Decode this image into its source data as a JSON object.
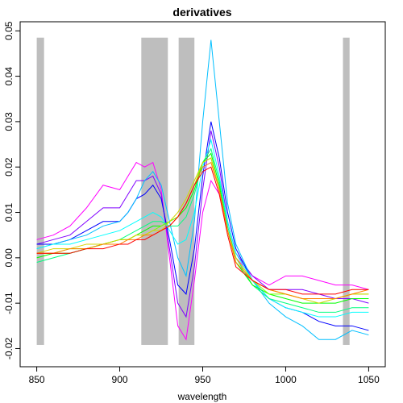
{
  "chart_data": {
    "type": "line",
    "title": "derivatives",
    "xlabel": "wavelength",
    "x": [
      850,
      860,
      870,
      880,
      890,
      900,
      905,
      910,
      915,
      920,
      925,
      930,
      935,
      940,
      945,
      950,
      955,
      960,
      965,
      970,
      980,
      990,
      1000,
      1010,
      1020,
      1030,
      1040,
      1050
    ],
    "xlim": [
      840,
      1060
    ],
    "ylim": [
      -0.024,
      0.052
    ],
    "xticks": [
      850,
      900,
      950,
      1000,
      1050
    ],
    "yticks": [
      -0.02,
      -0.01,
      {
        "value": 0,
        "label": "0.00"
      },
      0.01,
      0.02,
      0.03,
      0.04,
      0.05
    ],
    "shaded_regions": [
      {
        "x": [
          850,
          854.4
        ],
        "y": [
          -0.0192,
          0.0485
        ]
      },
      {
        "x": [
          913,
          929
        ],
        "y": [
          -0.0192,
          0.0485
        ]
      },
      {
        "x": [
          935.5,
          945
        ],
        "y": [
          -0.0192,
          0.0485
        ]
      },
      {
        "x": [
          1034.5,
          1038.5
        ],
        "y": [
          -0.0192,
          0.0485
        ]
      }
    ],
    "shade_color": "#bebebe",
    "series": [
      {
        "color": "#ff00ff",
        "values": [
          0.004,
          0.005,
          0.007,
          0.011,
          0.016,
          0.015,
          0.018,
          0.021,
          0.02,
          0.021,
          0.015,
          0.0,
          -0.015,
          -0.018,
          -0.005,
          0.01,
          0.017,
          0.014,
          0.006,
          0.0,
          -0.004,
          -0.006,
          -0.004,
          -0.004,
          -0.005,
          -0.006,
          -0.006,
          -0.007
        ]
      },
      {
        "color": "#8000ff",
        "values": [
          0.003,
          0.004,
          0.005,
          0.008,
          0.011,
          0.011,
          0.014,
          0.017,
          0.017,
          0.018,
          0.014,
          0.002,
          -0.01,
          -0.013,
          -0.002,
          0.015,
          0.028,
          0.02,
          0.008,
          0.001,
          -0.004,
          -0.007,
          -0.007,
          -0.007,
          -0.008,
          -0.009,
          -0.009,
          -0.01
        ]
      },
      {
        "color": "#0000ff",
        "values": [
          0.003,
          0.003,
          0.004,
          0.006,
          0.008,
          0.008,
          0.01,
          0.013,
          0.014,
          0.016,
          0.013,
          0.004,
          -0.006,
          -0.008,
          0.002,
          0.018,
          0.03,
          0.022,
          0.01,
          0.002,
          -0.005,
          -0.009,
          -0.011,
          -0.012,
          -0.014,
          -0.015,
          -0.015,
          -0.016
        ]
      },
      {
        "color": "#00bfff",
        "values": [
          0.002,
          0.003,
          0.004,
          0.005,
          0.007,
          0.008,
          0.01,
          0.013,
          0.017,
          0.019,
          0.016,
          0.008,
          0.0,
          -0.004,
          0.008,
          0.03,
          0.048,
          0.03,
          0.012,
          0.003,
          -0.005,
          -0.01,
          -0.013,
          -0.015,
          -0.018,
          -0.018,
          -0.016,
          -0.017
        ]
      },
      {
        "color": "#00ffff",
        "values": [
          0.002,
          0.003,
          0.003,
          0.004,
          0.005,
          0.006,
          0.007,
          0.008,
          0.009,
          0.01,
          0.009,
          0.006,
          0.003,
          0.004,
          0.01,
          0.02,
          0.026,
          0.018,
          0.008,
          0.001,
          -0.005,
          -0.009,
          -0.011,
          -0.012,
          -0.013,
          -0.013,
          -0.012,
          -0.012
        ]
      },
      {
        "color": "#00ff80",
        "values": [
          -0.001,
          0.0,
          0.001,
          0.002,
          0.003,
          0.004,
          0.005,
          0.006,
          0.007,
          0.008,
          0.008,
          0.007,
          0.007,
          0.009,
          0.014,
          0.021,
          0.024,
          0.017,
          0.007,
          0.0,
          -0.006,
          -0.009,
          -0.01,
          -0.011,
          -0.012,
          -0.012,
          -0.011,
          -0.011
        ]
      },
      {
        "color": "#00ff00",
        "values": [
          0.0,
          0.001,
          0.001,
          0.002,
          0.003,
          0.004,
          0.004,
          0.005,
          0.006,
          0.007,
          0.007,
          0.008,
          0.009,
          0.011,
          0.015,
          0.021,
          0.023,
          0.016,
          0.006,
          -0.001,
          -0.006,
          -0.008,
          -0.009,
          -0.01,
          -0.01,
          -0.01,
          -0.009,
          -0.009
        ]
      },
      {
        "color": "#80ff00",
        "values": [
          0.001,
          0.001,
          0.002,
          0.002,
          0.003,
          0.004,
          0.004,
          0.005,
          0.005,
          0.006,
          0.007,
          0.008,
          0.009,
          0.012,
          0.016,
          0.021,
          0.022,
          0.015,
          0.006,
          -0.001,
          -0.005,
          -0.008,
          -0.008,
          -0.009,
          -0.009,
          -0.009,
          -0.008,
          -0.008
        ]
      },
      {
        "color": "#d4d400",
        "values": [
          0.001,
          0.002,
          0.002,
          0.003,
          0.003,
          0.004,
          0.004,
          0.005,
          0.005,
          0.006,
          0.006,
          0.008,
          0.01,
          0.013,
          0.017,
          0.021,
          0.022,
          0.015,
          0.006,
          0.0,
          -0.005,
          -0.007,
          -0.008,
          -0.009,
          -0.01,
          -0.009,
          -0.008,
          -0.008
        ]
      },
      {
        "color": "#ff8000",
        "values": [
          0.001,
          0.001,
          0.002,
          0.002,
          0.003,
          0.003,
          0.004,
          0.004,
          0.005,
          0.005,
          0.006,
          0.007,
          0.009,
          0.012,
          0.016,
          0.02,
          0.021,
          0.015,
          0.006,
          -0.001,
          -0.005,
          -0.007,
          -0.008,
          -0.009,
          -0.009,
          -0.009,
          -0.008,
          -0.007
        ]
      },
      {
        "color": "#ff0000",
        "values": [
          0.001,
          0.001,
          0.001,
          0.002,
          0.002,
          0.003,
          0.003,
          0.004,
          0.004,
          0.005,
          0.006,
          0.007,
          0.009,
          0.012,
          0.016,
          0.019,
          0.02,
          0.014,
          0.005,
          -0.002,
          -0.005,
          -0.007,
          -0.007,
          -0.008,
          -0.008,
          -0.008,
          -0.007,
          -0.007
        ]
      }
    ]
  }
}
